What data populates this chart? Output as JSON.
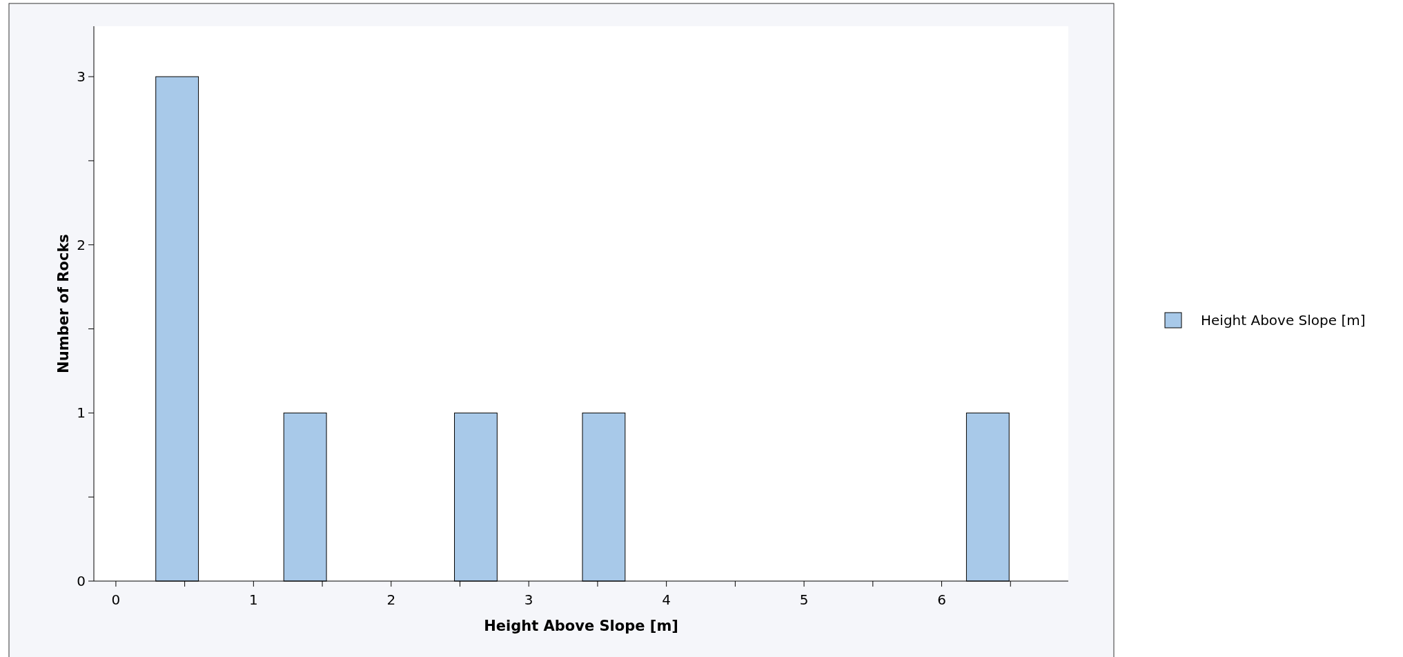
{
  "chart_data": {
    "type": "histogram",
    "xlabel": "Height Above Slope [m]",
    "ylabel": "Number of Rocks",
    "bins": [
      0.29,
      0.6,
      0.91,
      1.22,
      1.53,
      1.84,
      2.15,
      2.46,
      2.77,
      3.08,
      3.39,
      3.7,
      4.01,
      4.32,
      4.63,
      4.94,
      5.25,
      5.56,
      5.87,
      6.18,
      6.49
    ],
    "series": [
      {
        "name": "Height Above Slope [m]",
        "color": "#a8c9e9",
        "values": [
          3,
          0,
          0,
          1,
          0,
          0,
          0,
          1,
          0,
          0,
          1,
          0,
          0,
          0,
          0,
          0,
          0,
          0,
          0,
          1
        ]
      }
    ],
    "xlim": [
      -0.16,
      6.92
    ],
    "xticks": [
      0,
      {
        "value": 0.5,
        "label": null
      },
      1,
      {
        "value": 1.5,
        "label": null
      },
      2,
      {
        "value": 2.5,
        "label": null
      },
      3,
      {
        "value": 3.5,
        "label": null
      },
      4,
      {
        "value": 4.5,
        "label": null
      },
      5,
      {
        "value": 5.5,
        "label": null
      },
      6,
      {
        "value": 6.5,
        "label": null
      }
    ],
    "ylim": [
      0,
      3.3
    ],
    "yticks": [
      0,
      {
        "value": 0.5,
        "label": null
      },
      1,
      {
        "value": 1.5,
        "label": null
      },
      2,
      {
        "value": 2.5,
        "label": null
      },
      3
    ],
    "legend": "right"
  }
}
